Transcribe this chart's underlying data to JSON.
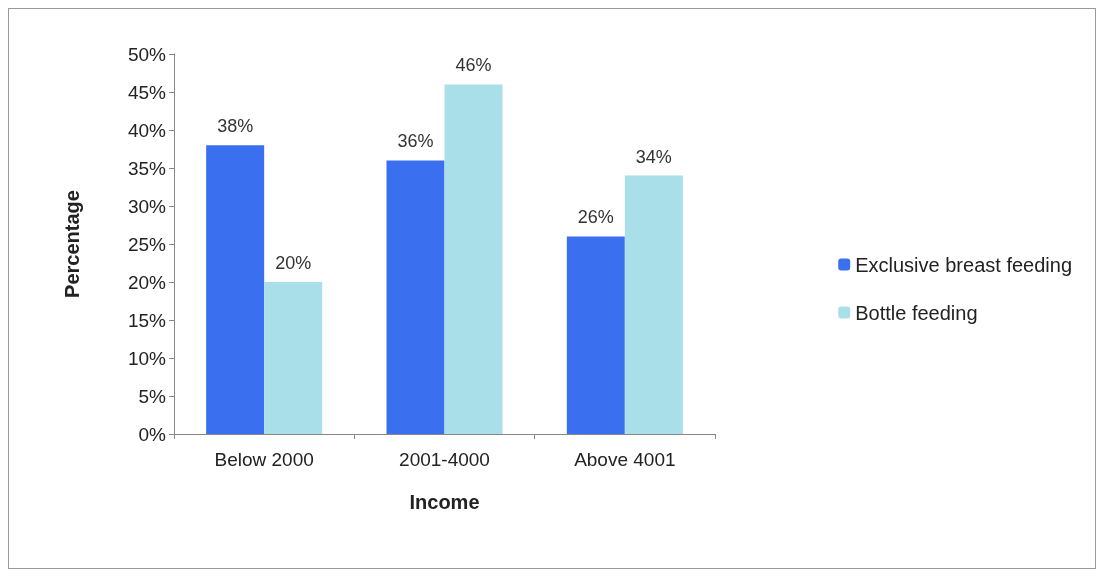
{
  "chart_data": {
    "type": "bar",
    "xlabel": "Income",
    "ylabel": "Percentage",
    "categories": [
      "Below 2000",
      "2001-4000",
      "Above 4001"
    ],
    "series": [
      {
        "name": "Exclusive breast feeding",
        "color": "#3a6ff0",
        "values": [
          38,
          36,
          26
        ],
        "value_labels": [
          "38%",
          "36%",
          "26%"
        ]
      },
      {
        "name": "Bottle feeding",
        "color": "#a9dfe8",
        "values": [
          20,
          46,
          34
        ],
        "value_labels": [
          "20%",
          "46%",
          "34%"
        ]
      }
    ],
    "ylim": [
      0,
      50
    ],
    "yticks": [
      {
        "value": 0,
        "label": "0%"
      },
      {
        "value": 5,
        "label": "5%"
      },
      {
        "value": 10,
        "label": "10%"
      },
      {
        "value": 15,
        "label": "15%"
      },
      {
        "value": 20,
        "label": "20%"
      },
      {
        "value": 25,
        "label": "25%"
      },
      {
        "value": 30,
        "label": "30%"
      },
      {
        "value": 35,
        "label": "35%"
      },
      {
        "value": 40,
        "label": "40%"
      },
      {
        "value": 45,
        "label": "45%"
      },
      {
        "value": 50,
        "label": "50%"
      }
    ],
    "grid": false,
    "legend": "right"
  }
}
